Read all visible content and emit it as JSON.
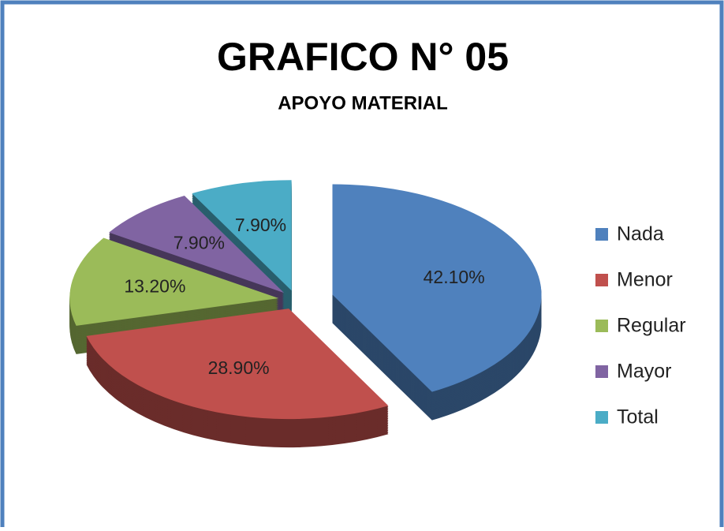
{
  "chart_data": {
    "type": "pie",
    "title": "GRAFICO N° 05",
    "subtitle": "APOYO MATERIAL",
    "categories": [
      "Nada",
      "Menor",
      "Regular",
      "Mayor",
      "Total"
    ],
    "values": [
      42.1,
      28.9,
      13.2,
      7.9,
      7.9
    ],
    "value_labels": [
      "42.10%",
      "28.90%",
      "13.20%",
      "7.90%",
      "7.90%"
    ],
    "colors": [
      "#4f81bd",
      "#c0504d",
      "#9bbb59",
      "#8064a2",
      "#4bacc6"
    ],
    "legend": "right"
  }
}
